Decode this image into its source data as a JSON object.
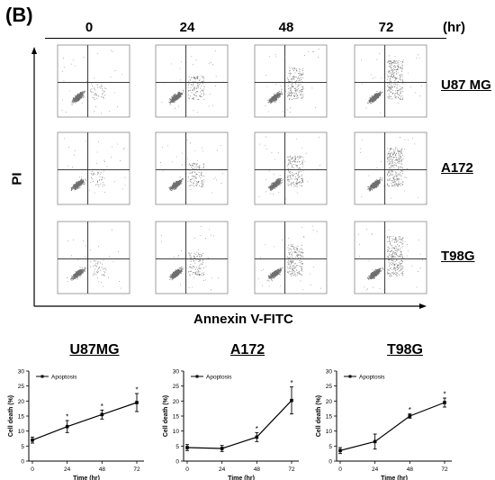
{
  "panel_label": "(B)",
  "flow": {
    "time_points": [
      "0",
      "24",
      "48",
      "72"
    ],
    "time_unit": "(hr)",
    "cell_lines": [
      "U87 MG",
      "A172",
      "T98G"
    ],
    "y_axis_label": "PI",
    "x_axis_label": "Annexin V-FITC"
  },
  "chart_data": [
    {
      "type": "line",
      "title": "U87MG",
      "xlabel": "Time (hr)",
      "ylabel": "Cell death (%)",
      "x": [
        0,
        24,
        48,
        72
      ],
      "xticks": [
        "0",
        "24",
        "48",
        "72"
      ],
      "ylim": [
        0,
        30
      ],
      "yticks": [
        0,
        5,
        10,
        15,
        20,
        25,
        30
      ],
      "legend": "top-left",
      "series": [
        {
          "name": "Apoptosis",
          "values": [
            7.0,
            11.5,
            15.5,
            19.5
          ],
          "errors": [
            1.0,
            2.0,
            1.5,
            3.0
          ]
        }
      ],
      "significance": [
        "",
        "*",
        "*",
        "*"
      ]
    },
    {
      "type": "line",
      "title": "A172",
      "xlabel": "Time (hr)",
      "ylabel": "Cell death (%)",
      "x": [
        0,
        24,
        48,
        72
      ],
      "xticks": [
        "0",
        "24",
        "48",
        "72"
      ],
      "ylim": [
        0,
        30
      ],
      "yticks": [
        0,
        5,
        10,
        15,
        20,
        25,
        30
      ],
      "legend": "top-left",
      "series": [
        {
          "name": "Apoptosis",
          "values": [
            4.5,
            4.2,
            8.0,
            20.2
          ],
          "errors": [
            1.0,
            1.0,
            1.5,
            4.5
          ]
        }
      ],
      "significance": [
        "",
        "",
        "*",
        "*"
      ]
    },
    {
      "type": "line",
      "title": "T98G",
      "xlabel": "Time (hr)",
      "ylabel": "Cell death (%)",
      "x": [
        0,
        24,
        48,
        72
      ],
      "xticks": [
        "0",
        "24",
        "48",
        "72"
      ],
      "ylim": [
        0,
        30
      ],
      "yticks": [
        0,
        5,
        10,
        15,
        20,
        25,
        30
      ],
      "legend": "top-left",
      "series": [
        {
          "name": "Apoptosis",
          "values": [
            3.5,
            6.5,
            15.0,
            19.5
          ],
          "errors": [
            1.0,
            2.5,
            0.7,
            1.5
          ]
        }
      ],
      "significance": [
        "",
        "",
        "*",
        "*"
      ]
    }
  ]
}
